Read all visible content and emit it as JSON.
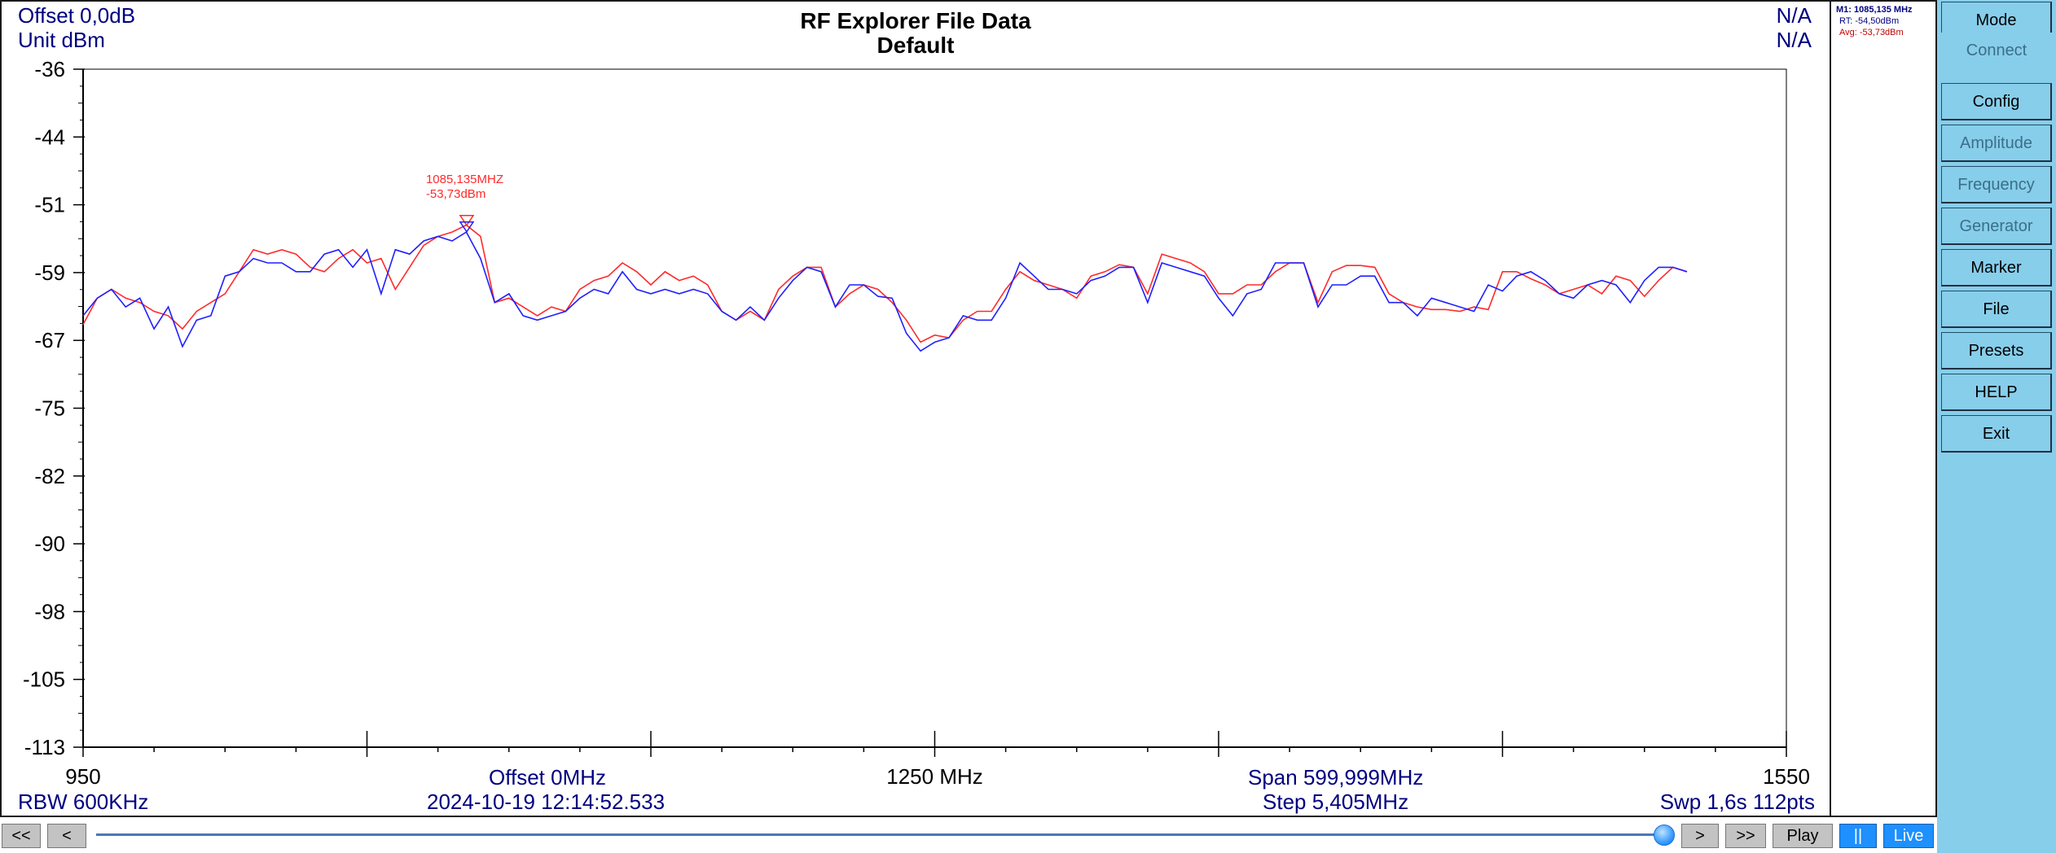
{
  "header": {
    "offset_db": "Offset 0,0dB",
    "unit": "Unit dBm",
    "title": "RF Explorer File Data",
    "subtitle": "Default",
    "na_top": "N/A",
    "na_bottom": "N/A"
  },
  "footer": {
    "rbw": "RBW 600KHz",
    "offset_mhz": "Offset 0MHz",
    "timestamp": "2024-10-19 12:14:52.533",
    "center": "1250 MHz",
    "span": "Span 599,999MHz",
    "step": "Step 5,405MHz",
    "sweep": "Swp 1,6s  112pts"
  },
  "marker_info": {
    "m1": "M1: 1085,135 MHz",
    "rt": "RT: -54,50dBm",
    "avg": "Avg: -53,73dBm"
  },
  "marker_label": {
    "freq": "1085,135MHZ",
    "level": "-53,73dBm",
    "x": 1085.135,
    "y": -53.73
  },
  "menu": {
    "items": [
      {
        "label": "Mode",
        "enabled": true
      },
      {
        "label": "Connect",
        "enabled": false
      },
      {
        "label": "Config",
        "enabled": true
      },
      {
        "label": "Amplitude",
        "enabled": false
      },
      {
        "label": "Frequency",
        "enabled": false
      },
      {
        "label": "Generator",
        "enabled": false
      },
      {
        "label": "Marker",
        "enabled": true
      },
      {
        "label": "File",
        "enabled": true
      },
      {
        "label": "Presets",
        "enabled": true
      },
      {
        "label": "HELP",
        "enabled": true
      },
      {
        "label": "Exit",
        "enabled": true
      }
    ]
  },
  "transport": {
    "first": "<<",
    "prev": "<",
    "next": ">",
    "last": ">>",
    "play": "Play",
    "pause": "||",
    "live": "Live",
    "position": 0.99
  },
  "colors": {
    "realtime": "#1f1fff",
    "average": "#ff2a2a",
    "text": "#000080",
    "menu_bg": "#87ceeb"
  },
  "chart_data": {
    "type": "line",
    "xlim": [
      950,
      1550
    ],
    "ylim": [
      -113,
      -36
    ],
    "x_tick_labels": [
      "950",
      "1250 MHz",
      "1550"
    ],
    "y_ticks": [
      "-36",
      "-44",
      "-51",
      "-59",
      "-67",
      "-75",
      "-82",
      "-90",
      "-98",
      "-105",
      "-113"
    ],
    "series": [
      {
        "points": [
          [
            950,
            -65
          ],
          [
            955,
            -62
          ],
          [
            960,
            -61
          ],
          [
            965,
            -62
          ],
          [
            970,
            -62.5
          ],
          [
            975,
            -63.5
          ],
          [
            980,
            -64
          ],
          [
            985,
            -65.5
          ],
          [
            990,
            -63.5
          ],
          [
            995,
            -62.5
          ],
          [
            1000,
            -61.5
          ],
          [
            1005,
            -59
          ],
          [
            1010,
            -56.5
          ],
          [
            1015,
            -57
          ],
          [
            1020,
            -56.5
          ],
          [
            1025,
            -57
          ],
          [
            1030,
            -58.5
          ],
          [
            1035,
            -59
          ],
          [
            1040,
            -57.5
          ],
          [
            1045,
            -56.5
          ],
          [
            1050,
            -58
          ],
          [
            1055,
            -57.5
          ],
          [
            1060,
            -61
          ],
          [
            1065,
            -58.5
          ],
          [
            1070,
            -56
          ],
          [
            1075,
            -55
          ],
          [
            1080,
            -54.5
          ],
          [
            1085,
            -53.7
          ],
          [
            1090,
            -55
          ],
          [
            1095,
            -62.5
          ],
          [
            1100,
            -62
          ],
          [
            1105,
            -63
          ],
          [
            1110,
            -64
          ],
          [
            1115,
            -63
          ],
          [
            1120,
            -63.5
          ],
          [
            1125,
            -61
          ],
          [
            1130,
            -60
          ],
          [
            1135,
            -59.5
          ],
          [
            1140,
            -58
          ],
          [
            1145,
            -59
          ],
          [
            1150,
            -60.5
          ],
          [
            1155,
            -59
          ],
          [
            1160,
            -60
          ],
          [
            1165,
            -59.5
          ],
          [
            1170,
            -60.5
          ],
          [
            1175,
            -63.5
          ],
          [
            1180,
            -64.5
          ],
          [
            1185,
            -63.5
          ],
          [
            1190,
            -64.5
          ],
          [
            1195,
            -61
          ],
          [
            1200,
            -59.5
          ],
          [
            1205,
            -58.5
          ],
          [
            1210,
            -58.5
          ],
          [
            1215,
            -63
          ],
          [
            1220,
            -61.5
          ],
          [
            1225,
            -60.5
          ],
          [
            1230,
            -61
          ],
          [
            1235,
            -62.5
          ],
          [
            1240,
            -64.5
          ],
          [
            1245,
            -67
          ],
          [
            1250,
            -66.2
          ],
          [
            1255,
            -66.5
          ],
          [
            1260,
            -64.5
          ],
          [
            1265,
            -63.5
          ],
          [
            1270,
            -63.5
          ],
          [
            1275,
            -61
          ],
          [
            1280,
            -59
          ],
          [
            1285,
            -60
          ],
          [
            1290,
            -60.5
          ],
          [
            1295,
            -61
          ],
          [
            1300,
            -62
          ],
          [
            1305,
            -59.5
          ],
          [
            1310,
            -59
          ],
          [
            1315,
            -58.2
          ],
          [
            1320,
            -58.5
          ],
          [
            1325,
            -61.5
          ],
          [
            1330,
            -57
          ],
          [
            1335,
            -57.5
          ],
          [
            1340,
            -58
          ],
          [
            1345,
            -59
          ],
          [
            1350,
            -61.5
          ],
          [
            1355,
            -61.5
          ],
          [
            1360,
            -60.5
          ],
          [
            1365,
            -60.5
          ],
          [
            1370,
            -59
          ],
          [
            1375,
            -58
          ],
          [
            1380,
            -58
          ],
          [
            1385,
            -62.5
          ],
          [
            1390,
            -59
          ],
          [
            1395,
            -58.3
          ],
          [
            1400,
            -58.3
          ],
          [
            1405,
            -58.5
          ],
          [
            1410,
            -61.5
          ],
          [
            1415,
            -62.5
          ],
          [
            1420,
            -63
          ],
          [
            1425,
            -63.3
          ],
          [
            1430,
            -63.3
          ],
          [
            1435,
            -63.5
          ],
          [
            1440,
            -63
          ],
          [
            1445,
            -63.3
          ],
          [
            1450,
            -59
          ],
          [
            1455,
            -59
          ],
          [
            1460,
            -59.8
          ],
          [
            1465,
            -60.5
          ],
          [
            1470,
            -61.5
          ],
          [
            1475,
            -61
          ],
          [
            1480,
            -60.5
          ],
          [
            1485,
            -61.5
          ],
          [
            1490,
            -59.5
          ],
          [
            1495,
            -60
          ],
          [
            1500,
            -61.8
          ],
          [
            1505,
            -60
          ],
          [
            1510,
            -58.5
          ],
          [
            1515,
            -59
          ]
        ]
      },
      {
        "points": [
          [
            950,
            -64
          ],
          [
            955,
            -62
          ],
          [
            960,
            -61
          ],
          [
            965,
            -63
          ],
          [
            970,
            -62
          ],
          [
            975,
            -65.5
          ],
          [
            980,
            -63
          ],
          [
            985,
            -67.5
          ],
          [
            990,
            -64.5
          ],
          [
            995,
            -64
          ],
          [
            1000,
            -59.5
          ],
          [
            1005,
            -59
          ],
          [
            1010,
            -57.5
          ],
          [
            1015,
            -58
          ],
          [
            1020,
            -58
          ],
          [
            1025,
            -59
          ],
          [
            1030,
            -59
          ],
          [
            1035,
            -57
          ],
          [
            1040,
            -56.5
          ],
          [
            1045,
            -58.5
          ],
          [
            1050,
            -56.5
          ],
          [
            1055,
            -61.5
          ],
          [
            1060,
            -56.5
          ],
          [
            1065,
            -57
          ],
          [
            1070,
            -55.5
          ],
          [
            1075,
            -55
          ],
          [
            1080,
            -55.5
          ],
          [
            1085,
            -54.5
          ],
          [
            1090,
            -57.5
          ],
          [
            1095,
            -62.5
          ],
          [
            1100,
            -61.5
          ],
          [
            1105,
            -64
          ],
          [
            1110,
            -64.5
          ],
          [
            1115,
            -64
          ],
          [
            1120,
            -63.5
          ],
          [
            1125,
            -62
          ],
          [
            1130,
            -61
          ],
          [
            1135,
            -61.5
          ],
          [
            1140,
            -59
          ],
          [
            1145,
            -61
          ],
          [
            1150,
            -61.5
          ],
          [
            1155,
            -61
          ],
          [
            1160,
            -61.5
          ],
          [
            1165,
            -61
          ],
          [
            1170,
            -61.5
          ],
          [
            1175,
            -63.5
          ],
          [
            1180,
            -64.5
          ],
          [
            1185,
            -63
          ],
          [
            1190,
            -64.5
          ],
          [
            1195,
            -62
          ],
          [
            1200,
            -60
          ],
          [
            1205,
            -58.5
          ],
          [
            1210,
            -59
          ],
          [
            1215,
            -63
          ],
          [
            1220,
            -60.5
          ],
          [
            1225,
            -60.5
          ],
          [
            1230,
            -61.8
          ],
          [
            1235,
            -62
          ],
          [
            1240,
            -66
          ],
          [
            1245,
            -68
          ],
          [
            1250,
            -67
          ],
          [
            1255,
            -66.5
          ],
          [
            1260,
            -64
          ],
          [
            1265,
            -64.5
          ],
          [
            1270,
            -64.5
          ],
          [
            1275,
            -62
          ],
          [
            1280,
            -58
          ],
          [
            1285,
            -59.5
          ],
          [
            1290,
            -61
          ],
          [
            1295,
            -61
          ],
          [
            1300,
            -61.5
          ],
          [
            1305,
            -60
          ],
          [
            1310,
            -59.5
          ],
          [
            1315,
            -58.5
          ],
          [
            1320,
            -58.5
          ],
          [
            1325,
            -62.5
          ],
          [
            1330,
            -58
          ],
          [
            1335,
            -58.5
          ],
          [
            1340,
            -59
          ],
          [
            1345,
            -59.5
          ],
          [
            1350,
            -62
          ],
          [
            1355,
            -64
          ],
          [
            1360,
            -61.5
          ],
          [
            1365,
            -61
          ],
          [
            1370,
            -58
          ],
          [
            1375,
            -58
          ],
          [
            1380,
            -58
          ],
          [
            1385,
            -63
          ],
          [
            1390,
            -60.5
          ],
          [
            1395,
            -60.5
          ],
          [
            1400,
            -59.5
          ],
          [
            1405,
            -59.5
          ],
          [
            1410,
            -62.5
          ],
          [
            1415,
            -62.5
          ],
          [
            1420,
            -64
          ],
          [
            1425,
            -62
          ],
          [
            1430,
            -62.5
          ],
          [
            1435,
            -63
          ],
          [
            1440,
            -63.5
          ],
          [
            1445,
            -60.5
          ],
          [
            1450,
            -61.2
          ],
          [
            1455,
            -59.5
          ],
          [
            1460,
            -59
          ],
          [
            1465,
            -60
          ],
          [
            1470,
            -61.5
          ],
          [
            1475,
            -62
          ],
          [
            1480,
            -60.5
          ],
          [
            1485,
            -60
          ],
          [
            1490,
            -60.5
          ],
          [
            1495,
            -62.5
          ],
          [
            1500,
            -60
          ],
          [
            1505,
            -58.5
          ],
          [
            1510,
            -58.5
          ],
          [
            1515,
            -59
          ]
        ]
      }
    ]
  }
}
